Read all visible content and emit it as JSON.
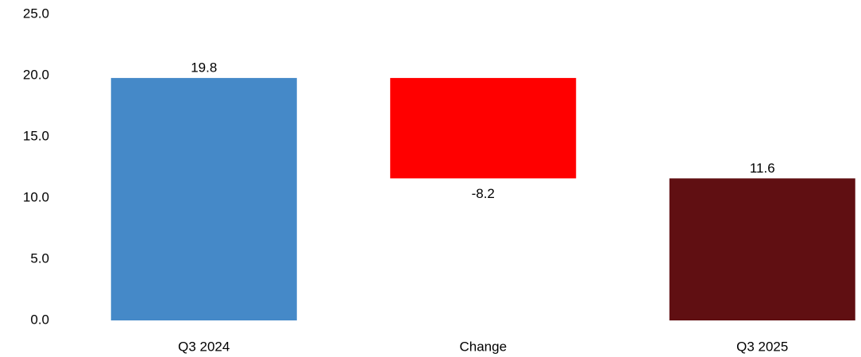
{
  "chart_data": {
    "type": "waterfall",
    "categories": [
      "Q3 2024",
      "Change",
      "Q3 2025"
    ],
    "values": [
      19.8,
      -8.2,
      11.6
    ],
    "colors": [
      "#4589c8",
      "#ff0000",
      "#600f12"
    ],
    "ylim": [
      0,
      25
    ],
    "yticks": [
      {
        "value": 0,
        "label": "0.0"
      },
      {
        "value": 5,
        "label": "5.0"
      },
      {
        "value": 10,
        "label": "10.0"
      },
      {
        "value": 15,
        "label": "15.0"
      },
      {
        "value": 20,
        "label": "20.0"
      },
      {
        "value": 25,
        "label": "25.0"
      }
    ],
    "grid": false
  }
}
